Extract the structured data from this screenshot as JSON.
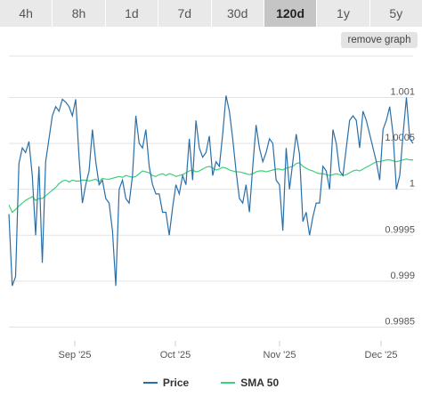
{
  "tabs": [
    {
      "label": "4h",
      "active": false
    },
    {
      "label": "8h",
      "active": false
    },
    {
      "label": "1d",
      "active": false
    },
    {
      "label": "7d",
      "active": false
    },
    {
      "label": "30d",
      "active": false
    },
    {
      "label": "120d",
      "active": true
    },
    {
      "label": "1y",
      "active": false
    },
    {
      "label": "5y",
      "active": false
    }
  ],
  "remove_graph_label": "remove graph",
  "legend": {
    "price_label": "Price",
    "sma_label": "SMA 50",
    "price_color": "#2a6fa8",
    "sma_color": "#3ecf7a"
  },
  "chart_data": {
    "type": "line",
    "x_tick_labels": [
      "Sep '25",
      "Oct '25",
      "Nov '25",
      "Dec '25"
    ],
    "y_tick_labels": [
      "1.001",
      "1.0005",
      "1",
      "0.9995",
      "0.999",
      "0.9985"
    ],
    "ylim": [
      0.99835,
      1.00145
    ],
    "grid": true,
    "legend_position": "bottom",
    "series": [
      {
        "name": "Price",
        "color": "#2a6fa8",
        "values": [
          0.99973,
          0.99895,
          0.99905,
          1.00028,
          1.00045,
          1.0004,
          1.00052,
          1.00015,
          0.9995,
          1.00025,
          0.9992,
          1.0003,
          1.00055,
          1.0008,
          1.0009,
          1.00085,
          1.00098,
          1.00095,
          1.0009,
          1.0008,
          1.00098,
          1.00035,
          0.99985,
          1.00005,
          1.0002,
          1.00065,
          1.0003,
          1.00005,
          1.0001,
          0.9999,
          0.99985,
          0.99955,
          0.99895,
          1.0,
          1.0001,
          0.9999,
          0.99985,
          1.00015,
          1.0008,
          1.0005,
          1.00045,
          1.00065,
          1.00025,
          1.00005,
          0.99995,
          0.99995,
          0.99975,
          0.99975,
          0.9995,
          0.9998,
          1.00005,
          0.99995,
          1.00015,
          1.00005,
          1.00055,
          1.0001,
          1.00075,
          1.00045,
          1.00035,
          1.0004,
          1.00058,
          1.00015,
          1.0003,
          1.00025,
          1.0006,
          1.00102,
          1.00085,
          1.00055,
          1.0002,
          0.9999,
          0.99985,
          1.00005,
          0.99975,
          1.00025,
          1.0007,
          1.00045,
          1.0003,
          1.0004,
          1.00055,
          1.0005,
          1.0001,
          1.00005,
          0.99955,
          1.00045,
          1.0,
          1.0003,
          1.0006,
          1.00038,
          0.99965,
          0.99975,
          0.9995,
          0.9997,
          0.99985,
          0.99985,
          1.00025,
          1.0002,
          1.0,
          1.00065,
          1.0005,
          1.0002,
          1.00015,
          1.00045,
          1.00075,
          1.0008,
          1.00075,
          1.00045,
          1.00085,
          1.00075,
          1.0006,
          1.00045,
          1.0003,
          1.0001,
          1.00065,
          1.00075,
          1.0009,
          1.0006,
          1.0,
          1.00015,
          1.0006,
          1.001,
          1.00055,
          1.0005
        ]
      },
      {
        "name": "SMA 50",
        "color": "#3ecf7a",
        "values": [
          0.99983,
          0.99975,
          0.99978,
          0.99982,
          0.99985,
          0.99988,
          0.9999,
          0.99992,
          0.99988,
          0.9999,
          0.9999,
          0.99993,
          0.99996,
          0.99999,
          1.00002,
          1.00006,
          1.00009,
          1.0001,
          1.00008,
          1.0001,
          1.00009,
          1.00009,
          1.0001,
          1.0001,
          1.00009,
          1.0001,
          1.00011,
          1.00008,
          1.00012,
          1.00011,
          1.00011,
          1.00012,
          1.00013,
          1.00014,
          1.00013,
          1.00015,
          1.00014,
          1.00013,
          1.00014,
          1.00017,
          1.0002,
          1.00019,
          1.00018,
          1.00015,
          1.00014,
          1.00016,
          1.00017,
          1.00015,
          1.00017,
          1.00016,
          1.00014,
          1.00015,
          1.00016,
          1.00018,
          1.0002,
          1.00021,
          1.00019,
          1.0002,
          1.00022,
          1.00024,
          1.00025,
          1.00023,
          1.00021,
          1.00022,
          1.00024,
          1.00023,
          1.00021,
          1.0002,
          1.00019,
          1.00019,
          1.00018,
          1.00017,
          1.00016,
          1.00017,
          1.00019,
          1.0002,
          1.0002,
          1.00019,
          1.0002,
          1.00021,
          1.00022,
          1.00022,
          1.00021,
          1.00023,
          1.00024,
          1.00025,
          1.00028,
          1.00029,
          1.00025,
          1.00023,
          1.00021,
          1.0002,
          1.00018,
          1.00017,
          1.00017,
          1.00016,
          1.00015,
          1.00016,
          1.00017,
          1.00016,
          1.00015,
          1.00016,
          1.00018,
          1.0002,
          1.00021,
          1.0002,
          1.00022,
          1.00024,
          1.00026,
          1.00028,
          1.0003,
          1.0003,
          1.00031,
          1.00032,
          1.00032,
          1.00031,
          1.0003,
          1.00031,
          1.00032,
          1.00033,
          1.00032,
          1.00032
        ]
      }
    ]
  }
}
